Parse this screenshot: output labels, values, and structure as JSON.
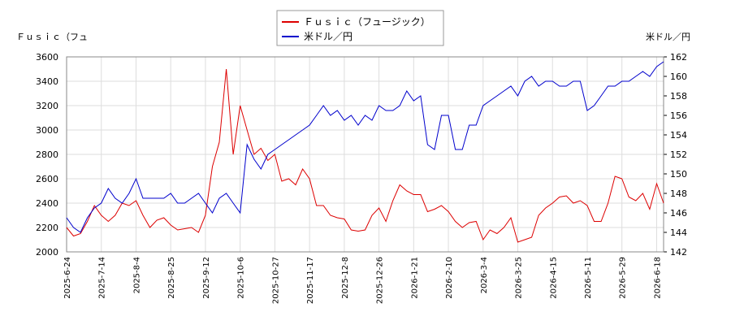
{
  "chart_data": {
    "type": "line",
    "y_label": "Ｆｕｓｉｃ（フュ",
    "y2_label": "米ドル／円",
    "categories": [
      "2025-6-24",
      null,
      null,
      null,
      null,
      "2025-7-14",
      null,
      null,
      null,
      null,
      "2025-8-4",
      null,
      null,
      null,
      null,
      "2025-8-25",
      null,
      null,
      null,
      null,
      "2025-9-12",
      null,
      null,
      null,
      null,
      "2025-10-6",
      null,
      null,
      null,
      null,
      "2025-10-27",
      null,
      null,
      null,
      null,
      "2025-11-17",
      null,
      null,
      null,
      null,
      "2025-12-8",
      null,
      null,
      null,
      null,
      "2025-12-26",
      null,
      null,
      null,
      null,
      "2026-1-21",
      null,
      null,
      null,
      null,
      "2026-2-10",
      null,
      null,
      null,
      null,
      "2026-3-4",
      null,
      null,
      null,
      null,
      "2026-3-25",
      null,
      null,
      null,
      null,
      "2026-4-15",
      null,
      null,
      null,
      null,
      "2026-5-11",
      null,
      null,
      null,
      null,
      "2026-5-29",
      null,
      null,
      null,
      null,
      "2026-6-18",
      null
    ],
    "series": [
      {
        "name": "Ｆｕｓｉｃ（フュージック）",
        "color": "#dd0000",
        "axis": "y",
        "values": [
          2200,
          2130,
          2150,
          2250,
          2380,
          2300,
          2250,
          2300,
          2400,
          2380,
          2420,
          2300,
          2200,
          2260,
          2280,
          2220,
          2180,
          2190,
          2200,
          2160,
          2300,
          2700,
          2900,
          3500,
          2800,
          3200,
          3000,
          2800,
          2850,
          2750,
          2800,
          2580,
          2600,
          2550,
          2680,
          2600,
          2380,
          2380,
          2300,
          2280,
          2270,
          2180,
          2170,
          2180,
          2300,
          2360,
          2250,
          2420,
          2550,
          2500,
          2470,
          2470,
          2330,
          2350,
          2380,
          2330,
          2250,
          2200,
          2240,
          2250,
          2100,
          2180,
          2150,
          2200,
          2280,
          2080,
          2100,
          2120,
          2300,
          2360,
          2400,
          2450,
          2460,
          2400,
          2420,
          2380,
          2250,
          2250,
          2400,
          2620,
          2600,
          2450,
          2420,
          2480,
          2350,
          2560,
          2400
        ]
      },
      {
        "name": "米ドル／円",
        "color": "#0000cc",
        "axis": "y2",
        "values": [
          145.5,
          144.5,
          144,
          145.5,
          146.5,
          147,
          148.5,
          147.5,
          147,
          148,
          149.5,
          147.5,
          147.5,
          147.5,
          147.5,
          148,
          147,
          147,
          147.5,
          148,
          147,
          146,
          147.5,
          148,
          147,
          146,
          153,
          151.5,
          150.5,
          152,
          152.5,
          153,
          153.5,
          154,
          154.5,
          155,
          156,
          157,
          156,
          156.5,
          155.5,
          156,
          155,
          156,
          155.5,
          157,
          156.5,
          156.5,
          157,
          158.5,
          157.5,
          158,
          153,
          152.5,
          156,
          156,
          152.5,
          152.5,
          155,
          155,
          157,
          157.5,
          158,
          158.5,
          159,
          158,
          159.5,
          160,
          159,
          159.5,
          159.5,
          159,
          159,
          159.5,
          159.5,
          156.5,
          157,
          158,
          159,
          159,
          159.5,
          159.5,
          160,
          160.5,
          160,
          161,
          161.5
        ]
      }
    ],
    "ylim": [
      2000,
      3600
    ],
    "yticks": [
      2000,
      2200,
      2400,
      2600,
      2800,
      3000,
      3200,
      3400,
      3600
    ],
    "y2lim": [
      142,
      162
    ],
    "y2ticks": [
      142,
      144,
      146,
      148,
      150,
      152,
      154,
      156,
      158,
      160,
      162
    ],
    "grid": true
  }
}
